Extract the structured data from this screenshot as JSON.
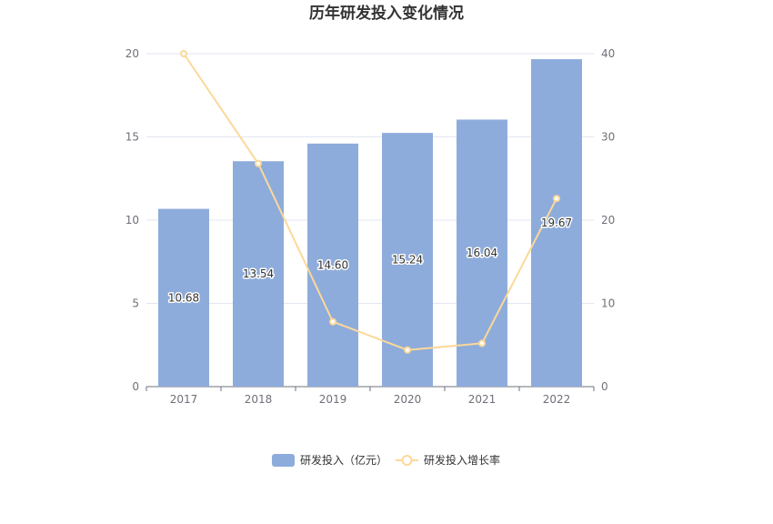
{
  "chart_data": {
    "type": "bar",
    "title": "历年研发投入变化情况",
    "categories": [
      "2017",
      "2018",
      "2019",
      "2020",
      "2021",
      "2022"
    ],
    "series": [
      {
        "name": "研发投入（亿元）",
        "type": "bar",
        "axis": "left",
        "color": "#8eacdb",
        "values": [
          10.68,
          13.54,
          14.6,
          15.24,
          16.04,
          19.67
        ],
        "labels": [
          "10.68",
          "13.54",
          "14.60",
          "15.24",
          "16.04",
          "19.67"
        ]
      },
      {
        "name": "研发投入增长率",
        "type": "line",
        "axis": "right",
        "color": "#fcd899",
        "values": [
          40.0,
          26.8,
          7.8,
          4.4,
          5.2,
          22.6
        ]
      }
    ],
    "y_left": {
      "ylim": [
        0,
        20
      ],
      "ticks": [
        "0",
        "5",
        "10",
        "15",
        "20"
      ]
    },
    "y_right": {
      "ylim": [
        0,
        40
      ],
      "ticks": [
        "0",
        "10",
        "20",
        "30",
        "40"
      ]
    },
    "grid": true,
    "legend_position": "bottom-center"
  }
}
